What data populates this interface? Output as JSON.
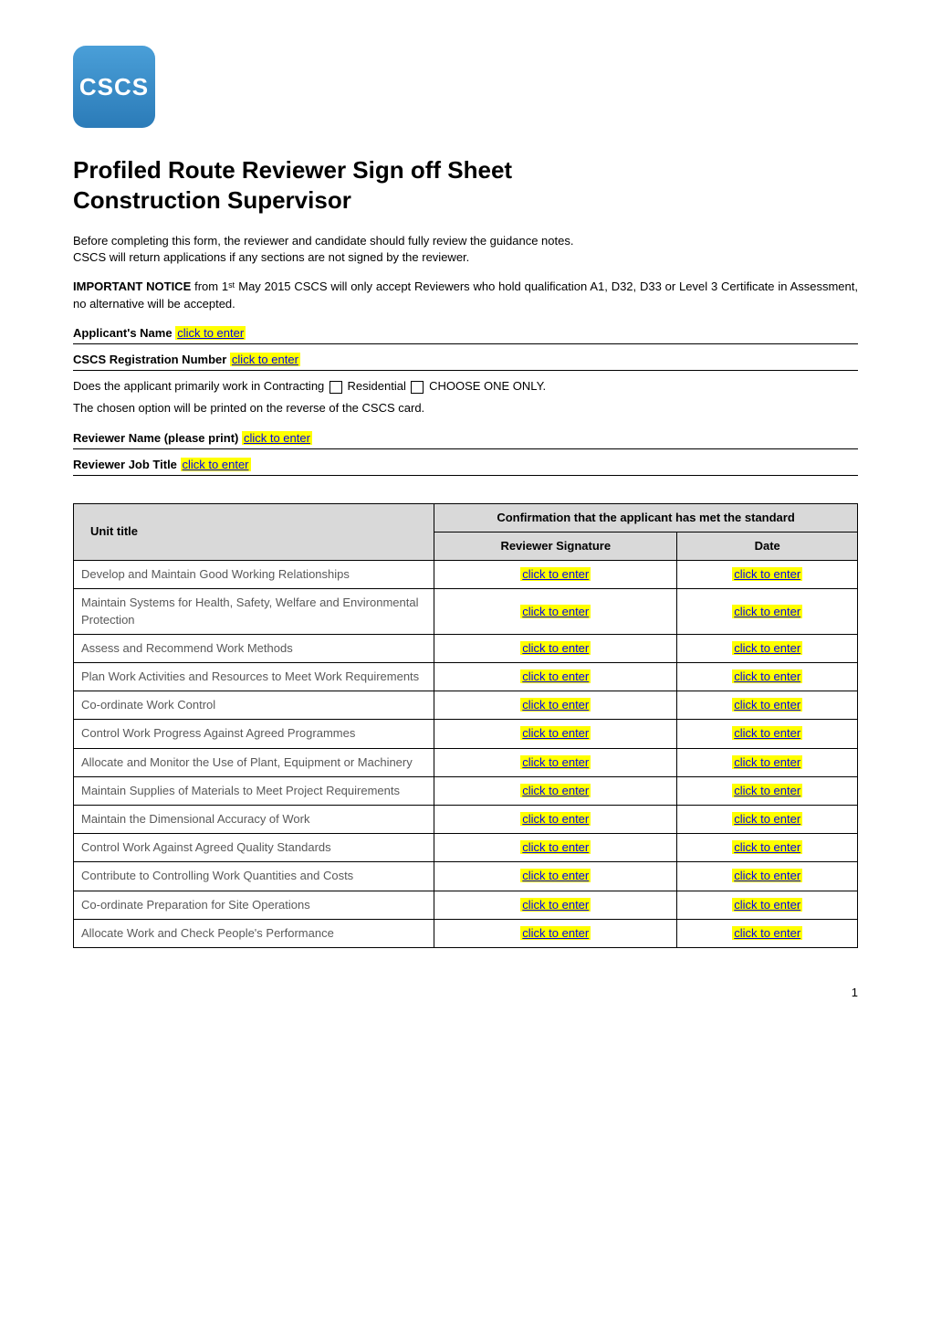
{
  "logo": {
    "text": "CSCS"
  },
  "title_line1": "Profiled Route Reviewer Sign off Sheet",
  "title_line2": "Construction Supervisor",
  "intro1": "Before completing this form, the reviewer and candidate should fully review the guidance notes.",
  "intro2": "CSCS will return applications if any sections are not signed by the reviewer.",
  "notice_label": "IMPORTANT NOTICE",
  "notice_text": " from 1ˢᵗ May 2015 CSCS will only accept Reviewers who hold qualification A1, D32, D33 or Level 3 Certificate in Assessment, no alternative will be accepted.",
  "applicant_label": "Applicant's Name  ",
  "reg_label": "CSCS Registration Number  ",
  "works_in_prefix": "Does the applicant primarily work in Contracting ",
  "works_in_mid": " Residential ",
  "works_in_suffix": " CHOOSE ONE ONLY.",
  "works_in_note": "The chosen option will be printed on the reverse of the CSCS card.",
  "reviewer_name_label": "Reviewer Name (please print) ",
  "reviewer_title_label": "Reviewer Job Title  ",
  "placeholder": "click to enter",
  "table": {
    "header_unit": "Unit title",
    "header_conf": "Confirmation that the applicant has met the standard",
    "header_sig": "Reviewer Signature",
    "header_date": "Date",
    "rows": [
      {
        "unit": "Develop and Maintain Good Working Relationships"
      },
      {
        "unit": "Maintain Systems for Health, Safety, Welfare and Environmental Protection"
      },
      {
        "unit": "Assess and Recommend Work Methods"
      },
      {
        "unit": "Plan Work Activities and Resources to Meet Work Requirements"
      },
      {
        "unit": "Co-ordinate Work Control"
      },
      {
        "unit": "Control Work Progress Against Agreed Programmes"
      },
      {
        "unit": "Allocate and Monitor the Use of Plant, Equipment or Machinery"
      },
      {
        "unit": "Maintain Supplies  of Materials to Meet Project Requirements"
      },
      {
        "unit": "Maintain the Dimensional Accuracy of Work"
      },
      {
        "unit": "Control Work Against Agreed Quality Standards"
      },
      {
        "unit": "Contribute to Controlling Work Quantities and Costs"
      },
      {
        "unit": "Co-ordinate Preparation for Site Operations"
      },
      {
        "unit": "Allocate Work and Check People's Performance"
      }
    ]
  },
  "page_number": "1",
  "colors": {
    "header_bg": "#d9d9d9",
    "unit_text": "#595959",
    "highlight_bg": "#ffff00",
    "link_color": "#0000ee"
  }
}
